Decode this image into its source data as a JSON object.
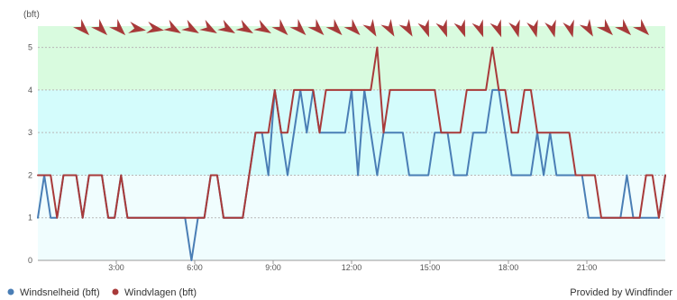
{
  "chart_data": {
    "type": "line",
    "unit_label": "(bft)",
    "y_ticks": [
      "0",
      "1",
      "2",
      "3",
      "4",
      "5"
    ],
    "ylim": [
      0,
      5.5
    ],
    "x_ticks": [
      {
        "label": "3:00",
        "hour": 3
      },
      {
        "label": "6:00",
        "hour": 6
      },
      {
        "label": "9:00",
        "hour": 9
      },
      {
        "label": "12:00",
        "hour": 12
      },
      {
        "label": "15:00",
        "hour": 15
      },
      {
        "label": "18:00",
        "hour": 18
      },
      {
        "label": "21:00",
        "hour": 21
      }
    ],
    "xlim": [
      0,
      24
    ],
    "bands": [
      {
        "from": 0,
        "to": 2,
        "color": "#f0fdfe"
      },
      {
        "from": 2,
        "to": 4,
        "color": "#d4fcfc"
      },
      {
        "from": 4,
        "to": 5.5,
        "color": "#d9fbdf"
      }
    ],
    "grid": true,
    "series": [
      {
        "name": "Windsnelheid (bft)",
        "color": "#4a7eb5",
        "values": [
          1,
          2,
          1,
          1,
          2,
          2,
          2,
          1,
          2,
          2,
          2,
          1,
          1,
          2,
          1,
          1,
          1,
          1,
          1,
          1,
          1,
          1,
          1,
          1,
          0,
          1,
          1,
          2,
          2,
          1,
          1,
          1,
          1,
          2,
          3,
          3,
          2,
          4,
          3,
          2,
          3,
          4,
          3,
          4,
          3,
          3,
          3,
          3,
          3,
          4,
          2,
          4,
          3,
          2,
          3,
          3,
          3,
          3,
          2,
          2,
          2,
          2,
          3,
          3,
          3,
          2,
          2,
          2,
          3,
          3,
          3,
          4,
          4,
          3,
          2,
          2,
          2,
          2,
          3,
          2,
          3,
          2,
          2,
          2,
          2,
          2,
          1,
          1,
          1,
          1,
          1,
          1,
          2,
          1,
          1,
          1,
          1,
          1,
          2
        ]
      },
      {
        "name": "Windvlagen (bft)",
        "color": "#a83a3a",
        "values": [
          2,
          2,
          2,
          1,
          2,
          2,
          2,
          1,
          2,
          2,
          2,
          1,
          1,
          2,
          1,
          1,
          1,
          1,
          1,
          1,
          1,
          1,
          1,
          1,
          1,
          1,
          1,
          2,
          2,
          1,
          1,
          1,
          1,
          2,
          3,
          3,
          3,
          4,
          3,
          3,
          4,
          4,
          4,
          4,
          3,
          4,
          4,
          4,
          4,
          4,
          4,
          4,
          4,
          5,
          3,
          4,
          4,
          4,
          4,
          4,
          4,
          4,
          4,
          3,
          3,
          3,
          3,
          4,
          4,
          4,
          4,
          5,
          4,
          4,
          3,
          3,
          4,
          4,
          3,
          3,
          3,
          3,
          3,
          3,
          2,
          2,
          2,
          2,
          1,
          1,
          1,
          1,
          1,
          1,
          1,
          2,
          2,
          1,
          2
        ]
      }
    ],
    "wind_directions": [
      135,
      135,
      135,
      100,
      100,
      120,
      120,
      120,
      120,
      120,
      120,
      135,
      135,
      135,
      135,
      135,
      150,
      150,
      150,
      160,
      160,
      160,
      160,
      160,
      165,
      165,
      165,
      165,
      150,
      135,
      135,
      135
    ]
  },
  "footer": {
    "credit": "Provided by Windfinder"
  }
}
